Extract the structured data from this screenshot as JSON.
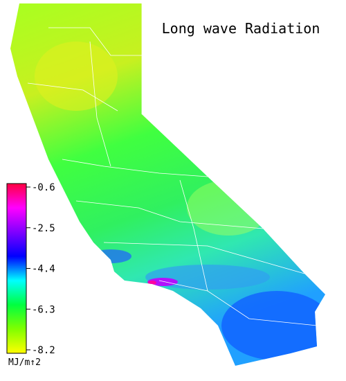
{
  "title": "Long wave Radiation",
  "colorbar": {
    "ticks": [
      -0.6,
      -2.5,
      -4.4,
      -6.3,
      -8.2
    ],
    "unit": "MJ/m↑2",
    "colors": [
      "#ff0040",
      "#ff00ff",
      "#8000ff",
      "#0000ff",
      "#00ffff",
      "#00ff40",
      "#80ff00",
      "#ffff00"
    ]
  }
}
